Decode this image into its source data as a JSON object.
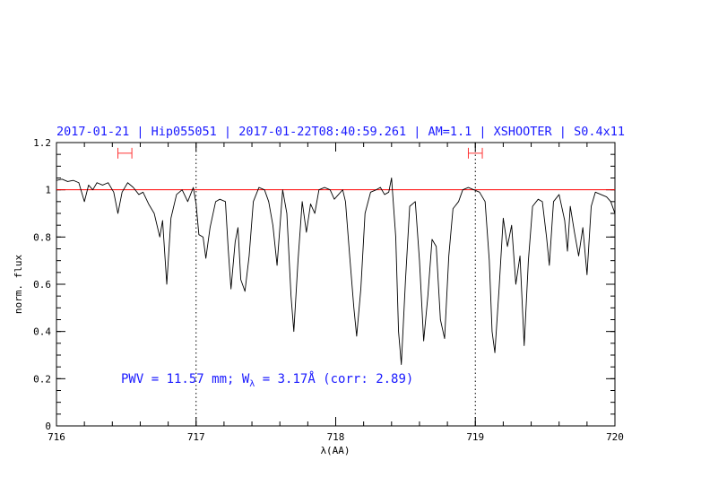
{
  "chart_data": {
    "type": "line",
    "title": "2017-01-21 | Hip055051 | 2017-01-22T08:40:59.261 | AM=1.1 | XSHOOTER | S0.4x11",
    "xlabel": "λ(AA)",
    "ylabel": "norm. flux",
    "xlim": [
      716,
      720
    ],
    "ylim": [
      0,
      1.2
    ],
    "x_ticks": [
      "716",
      "717",
      "718",
      "719",
      "720"
    ],
    "y_ticks": [
      "0",
      "0.2",
      "0.4",
      "0.6",
      "0.8",
      "1",
      "1.2"
    ],
    "reference_line": {
      "y": 1.0,
      "color": "#ff0000"
    },
    "vertical_markers": [
      717.0,
      719.0
    ],
    "intervals": [
      {
        "x0": 716.44,
        "x1": 716.54,
        "y": 1.155
      },
      {
        "x0": 718.95,
        "x1": 719.05,
        "y": 1.155
      }
    ],
    "annotation": {
      "prefix": "PWV = 11.57 mm; W",
      "subscript": "λ",
      "suffix": " = 3.17Å (corr: 2.89)"
    },
    "series": [
      {
        "color": "#000000",
        "points": [
          [
            716.0,
            1.04
          ],
          [
            716.04,
            1.045
          ],
          [
            716.08,
            1.035
          ],
          [
            716.12,
            1.04
          ],
          [
            716.16,
            1.03
          ],
          [
            716.2,
            0.95
          ],
          [
            716.23,
            1.02
          ],
          [
            716.26,
            1.0
          ],
          [
            716.29,
            1.03
          ],
          [
            716.33,
            1.02
          ],
          [
            716.37,
            1.03
          ],
          [
            716.41,
            0.99
          ],
          [
            716.44,
            0.9
          ],
          [
            716.47,
            0.99
          ],
          [
            716.51,
            1.03
          ],
          [
            716.55,
            1.01
          ],
          [
            716.59,
            0.98
          ],
          [
            716.62,
            0.99
          ],
          [
            716.66,
            0.94
          ],
          [
            716.7,
            0.9
          ],
          [
            716.74,
            0.8
          ],
          [
            716.76,
            0.87
          ],
          [
            716.79,
            0.6
          ],
          [
            716.82,
            0.88
          ],
          [
            716.86,
            0.98
          ],
          [
            716.9,
            1.0
          ],
          [
            716.94,
            0.95
          ],
          [
            716.98,
            1.01
          ],
          [
            717.0,
            0.94
          ],
          [
            717.02,
            0.81
          ],
          [
            717.05,
            0.8
          ],
          [
            717.07,
            0.71
          ],
          [
            717.1,
            0.84
          ],
          [
            717.14,
            0.95
          ],
          [
            717.17,
            0.96
          ],
          [
            717.21,
            0.95
          ],
          [
            717.23,
            0.75
          ],
          [
            717.25,
            0.58
          ],
          [
            717.28,
            0.78
          ],
          [
            717.3,
            0.84
          ],
          [
            717.32,
            0.62
          ],
          [
            717.35,
            0.57
          ],
          [
            717.38,
            0.72
          ],
          [
            717.41,
            0.95
          ],
          [
            717.45,
            1.01
          ],
          [
            717.49,
            1.0
          ],
          [
            717.52,
            0.95
          ],
          [
            717.55,
            0.85
          ],
          [
            717.58,
            0.68
          ],
          [
            717.62,
            1.0
          ],
          [
            717.65,
            0.9
          ],
          [
            717.68,
            0.55
          ],
          [
            717.7,
            0.4
          ],
          [
            717.73,
            0.7
          ],
          [
            717.76,
            0.95
          ],
          [
            717.79,
            0.82
          ],
          [
            717.82,
            0.94
          ],
          [
            717.85,
            0.9
          ],
          [
            717.88,
            1.0
          ],
          [
            717.92,
            1.01
          ],
          [
            717.96,
            1.0
          ],
          [
            717.99,
            0.96
          ],
          [
            718.02,
            0.98
          ],
          [
            718.05,
            1.0
          ],
          [
            718.07,
            0.95
          ],
          [
            718.1,
            0.72
          ],
          [
            718.13,
            0.5
          ],
          [
            718.15,
            0.38
          ],
          [
            718.18,
            0.58
          ],
          [
            718.21,
            0.9
          ],
          [
            718.25,
            0.99
          ],
          [
            718.29,
            1.0
          ],
          [
            718.32,
            1.01
          ],
          [
            718.35,
            0.98
          ],
          [
            718.38,
            0.99
          ],
          [
            718.4,
            1.05
          ],
          [
            718.43,
            0.8
          ],
          [
            718.45,
            0.4
          ],
          [
            718.47,
            0.26
          ],
          [
            718.5,
            0.62
          ],
          [
            718.53,
            0.93
          ],
          [
            718.57,
            0.95
          ],
          [
            718.6,
            0.7
          ],
          [
            718.63,
            0.36
          ],
          [
            718.66,
            0.55
          ],
          [
            718.69,
            0.79
          ],
          [
            718.72,
            0.76
          ],
          [
            718.75,
            0.45
          ],
          [
            718.78,
            0.37
          ],
          [
            718.81,
            0.72
          ],
          [
            718.84,
            0.92
          ],
          [
            718.88,
            0.95
          ],
          [
            718.91,
            1.0
          ],
          [
            718.95,
            1.01
          ],
          [
            718.99,
            1.0
          ],
          [
            719.03,
            0.99
          ],
          [
            719.07,
            0.95
          ],
          [
            719.1,
            0.7
          ],
          [
            719.12,
            0.4
          ],
          [
            719.14,
            0.31
          ],
          [
            719.17,
            0.58
          ],
          [
            719.2,
            0.88
          ],
          [
            719.23,
            0.76
          ],
          [
            719.26,
            0.85
          ],
          [
            719.29,
            0.6
          ],
          [
            719.32,
            0.72
          ],
          [
            719.35,
            0.34
          ],
          [
            719.38,
            0.7
          ],
          [
            719.41,
            0.93
          ],
          [
            719.45,
            0.96
          ],
          [
            719.48,
            0.95
          ],
          [
            719.51,
            0.8
          ],
          [
            719.53,
            0.68
          ],
          [
            719.56,
            0.95
          ],
          [
            719.6,
            0.98
          ],
          [
            719.64,
            0.87
          ],
          [
            719.66,
            0.74
          ],
          [
            719.68,
            0.93
          ],
          [
            719.71,
            0.82
          ],
          [
            719.74,
            0.72
          ],
          [
            719.77,
            0.84
          ],
          [
            719.8,
            0.64
          ],
          [
            719.83,
            0.93
          ],
          [
            719.86,
            0.99
          ],
          [
            719.9,
            0.98
          ],
          [
            719.94,
            0.97
          ],
          [
            719.97,
            0.95
          ],
          [
            720.0,
            0.9
          ]
        ]
      }
    ]
  }
}
